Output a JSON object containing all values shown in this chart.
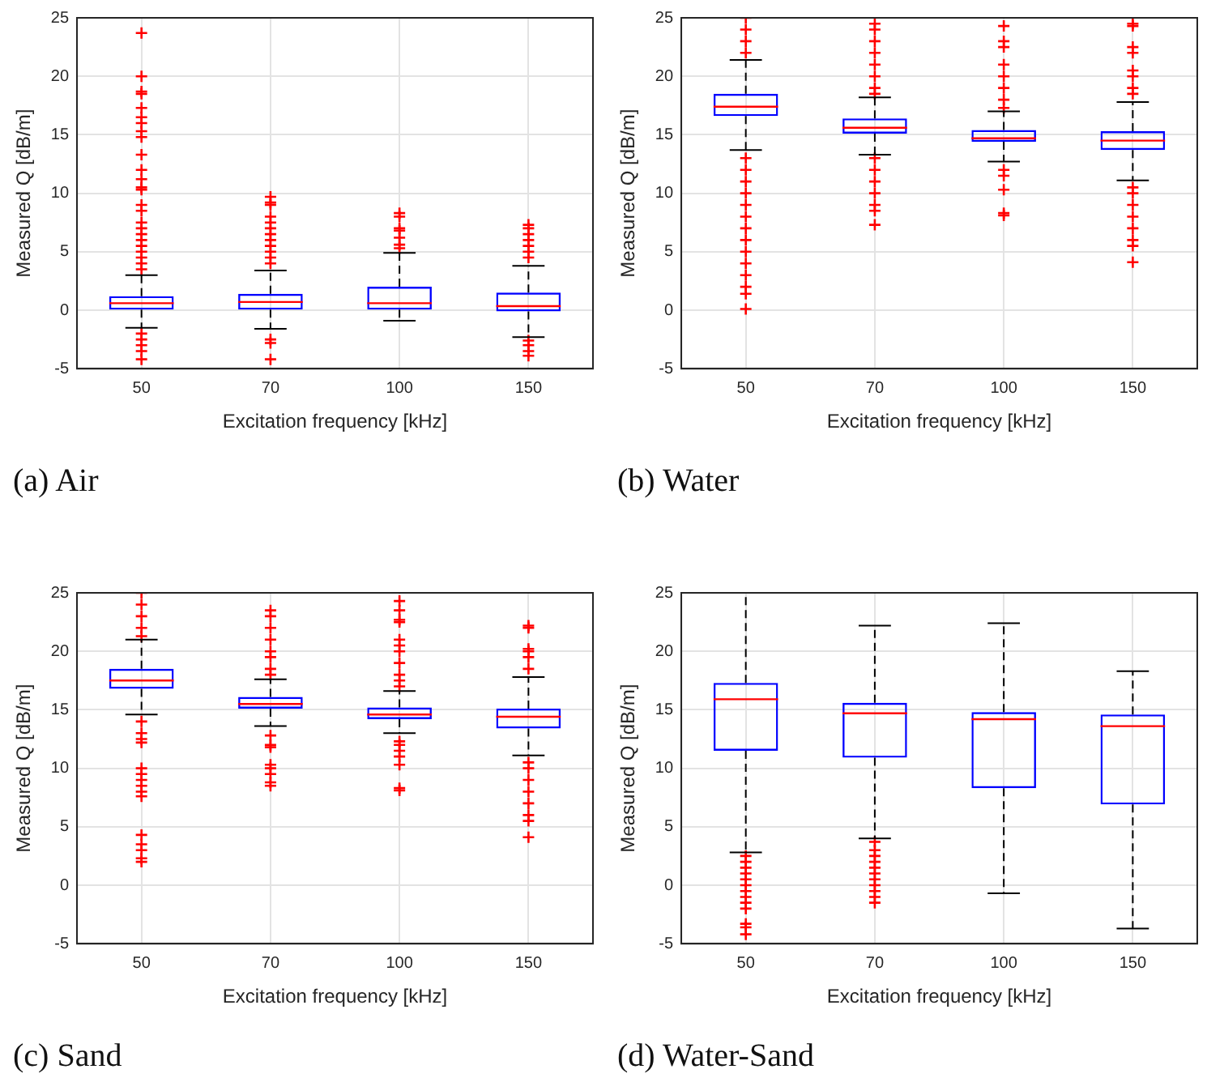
{
  "chart_data": [
    {
      "type": "box",
      "title": "(a) Air",
      "xlabel": "Excitation frequency [kHz]",
      "ylabel": "Measured Q [dB/m]",
      "categories": [
        "50",
        "70",
        "100",
        "150"
      ],
      "ylim": [
        -5,
        25
      ],
      "yticks": [
        -5,
        0,
        5,
        10,
        15,
        20,
        25
      ],
      "grid": true,
      "marker": "cross",
      "series": [
        {
          "color": "#0000ff",
          "boxes": [
            {
              "low": -1.5,
              "q1": 0.05,
              "median": 0.6,
              "q3": 1.2,
              "high": 3.0,
              "outliers": [
                23.7,
                20,
                18.7,
                18.5,
                17.3,
                16.5,
                16,
                15.3,
                14.8,
                13.3,
                12,
                11.2,
                10.5,
                10.3,
                9,
                8.5,
                7.5,
                7,
                6.5,
                6,
                5.5,
                5,
                4.5,
                4,
                3.5,
                -2,
                -2.5,
                -3,
                -3.5,
                -4.2
              ]
            },
            {
              "low": -1.6,
              "q1": 0.05,
              "median": 0.7,
              "q3": 1.4,
              "high": 3.4,
              "outliers": [
                9.7,
                9.2,
                9,
                8,
                7.5,
                7,
                6.5,
                6,
                5.5,
                5,
                4.5,
                4,
                -2.5,
                -2.8,
                -4.2
              ]
            },
            {
              "low": -0.9,
              "q1": 0.05,
              "median": 0.6,
              "q3": 2.0,
              "high": 4.9,
              "outliers": [
                8.3,
                8,
                7,
                6.8,
                6.2,
                5.6,
                5.3
              ]
            },
            {
              "low": -2.3,
              "q1": -0.1,
              "median": 0.35,
              "q3": 1.5,
              "high": 3.8,
              "outliers": [
                7.3,
                7,
                6.5,
                6,
                5.5,
                5,
                4.5,
                -2.6,
                -3,
                -3.5,
                -3.9
              ]
            }
          ]
        }
      ]
    },
    {
      "type": "box",
      "title": "(b) Water",
      "xlabel": "Excitation frequency [kHz]",
      "ylabel": "Measured Q [dB/m]",
      "categories": [
        "50",
        "70",
        "100",
        "150"
      ],
      "ylim": [
        -5,
        25
      ],
      "yticks": [
        -5,
        0,
        5,
        10,
        15,
        20,
        25
      ],
      "grid": true,
      "marker": "cross",
      "series": [
        {
          "color": "#0000ff",
          "boxes": [
            {
              "low": 13.7,
              "q1": 16.6,
              "median": 17.4,
              "q3": 18.5,
              "high": 21.4,
              "outliers": [
                25,
                24,
                23,
                22,
                13,
                12,
                11,
                10,
                9,
                8,
                7,
                6,
                5,
                4,
                3,
                2,
                1.4,
                0.1
              ]
            },
            {
              "low": 13.3,
              "q1": 15.1,
              "median": 15.6,
              "q3": 16.4,
              "high": 18.2,
              "outliers": [
                24.5,
                24,
                23,
                22,
                21,
                20,
                19,
                18.5,
                13,
                12,
                11,
                10,
                9,
                8.5,
                7.3
              ]
            },
            {
              "low": 12.7,
              "q1": 14.4,
              "median": 14.7,
              "q3": 15.4,
              "high": 17,
              "outliers": [
                24.3,
                23,
                22.5,
                21,
                20,
                19,
                18,
                17.3,
                12,
                11.5,
                10.3,
                8.3,
                8.1
              ]
            },
            {
              "low": 11.1,
              "q1": 13.7,
              "median": 14.5,
              "q3": 15.3,
              "high": 17.8,
              "outliers": [
                24.5,
                24.3,
                22.5,
                22,
                20.5,
                20,
                19,
                18.5,
                10.5,
                10,
                9,
                8,
                7,
                6,
                5.5,
                4.1
              ]
            }
          ]
        }
      ]
    },
    {
      "type": "box",
      "title": "(c) Sand",
      "xlabel": "Excitation frequency [kHz]",
      "ylabel": "Measured Q [dB/m]",
      "categories": [
        "50",
        "70",
        "100",
        "150"
      ],
      "ylim": [
        -5,
        25
      ],
      "yticks": [
        -5,
        0,
        5,
        10,
        15,
        20,
        25
      ],
      "grid": true,
      "marker": "cross",
      "series": [
        {
          "color": "#0000ff",
          "boxes": [
            {
              "low": 14.6,
              "q1": 16.8,
              "median": 17.5,
              "q3": 18.5,
              "high": 21,
              "outliers": [
                25,
                24,
                23,
                22,
                21.3,
                14,
                13,
                12.5,
                12.2,
                10,
                9.5,
                9,
                8.5,
                8,
                7.6,
                4.3,
                3.5,
                3,
                2.3,
                2
              ]
            },
            {
              "low": 13.6,
              "q1": 15.1,
              "median": 15.5,
              "q3": 16.1,
              "high": 17.6,
              "outliers": [
                23.5,
                23,
                22,
                21,
                20,
                19.5,
                18.5,
                18,
                12.8,
                12,
                11.8,
                10.3,
                10,
                9.5,
                8.8,
                8.5
              ]
            },
            {
              "low": 13,
              "q1": 14.2,
              "median": 14.6,
              "q3": 15.2,
              "high": 16.6,
              "outliers": [
                24.3,
                23.5,
                22.7,
                22.5,
                21,
                20.5,
                20,
                19,
                18,
                17.5,
                17,
                12.3,
                12,
                11.5,
                11,
                10.3,
                8.3,
                8.1
              ]
            },
            {
              "low": 11.1,
              "q1": 13.4,
              "median": 14.4,
              "q3": 15.1,
              "high": 17.8,
              "outliers": [
                22.2,
                22,
                20.2,
                20,
                19.5,
                18.5,
                10.5,
                10,
                9,
                8,
                7,
                6,
                5.5,
                4.1
              ]
            }
          ]
        }
      ]
    },
    {
      "type": "box",
      "title": "(d) Water-Sand",
      "xlabel": "Excitation frequency [kHz]",
      "ylabel": "Measured Q [dB/m]",
      "categories": [
        "50",
        "70",
        "100",
        "150"
      ],
      "ylim": [
        -5,
        25
      ],
      "yticks": [
        -5,
        0,
        5,
        10,
        15,
        20,
        25
      ],
      "grid": true,
      "marker": "cross",
      "series": [
        {
          "color": "#0000ff",
          "boxes": [
            {
              "low": 2.8,
              "q1": 11.5,
              "median": 15.9,
              "q3": 17.3,
              "high": 25,
              "outliers": [
                2.5,
                2,
                1.5,
                1,
                0.5,
                0,
                -0.5,
                -1,
                -1.5,
                -2,
                -3.3,
                -3.6,
                -4.2
              ]
            },
            {
              "low": 4.0,
              "q1": 10.9,
              "median": 14.7,
              "q3": 15.6,
              "high": 22.2,
              "outliers": [
                3.7,
                3,
                2.5,
                2,
                1.5,
                1,
                0.5,
                0,
                -0.5,
                -1,
                -1.5
              ]
            },
            {
              "low": -0.7,
              "q1": 8.3,
              "median": 14.2,
              "q3": 14.8,
              "high": 22.4
            },
            {
              "low": -3.7,
              "q1": 6.9,
              "median": 13.6,
              "q3": 14.6,
              "high": 18.3
            }
          ]
        }
      ]
    }
  ]
}
